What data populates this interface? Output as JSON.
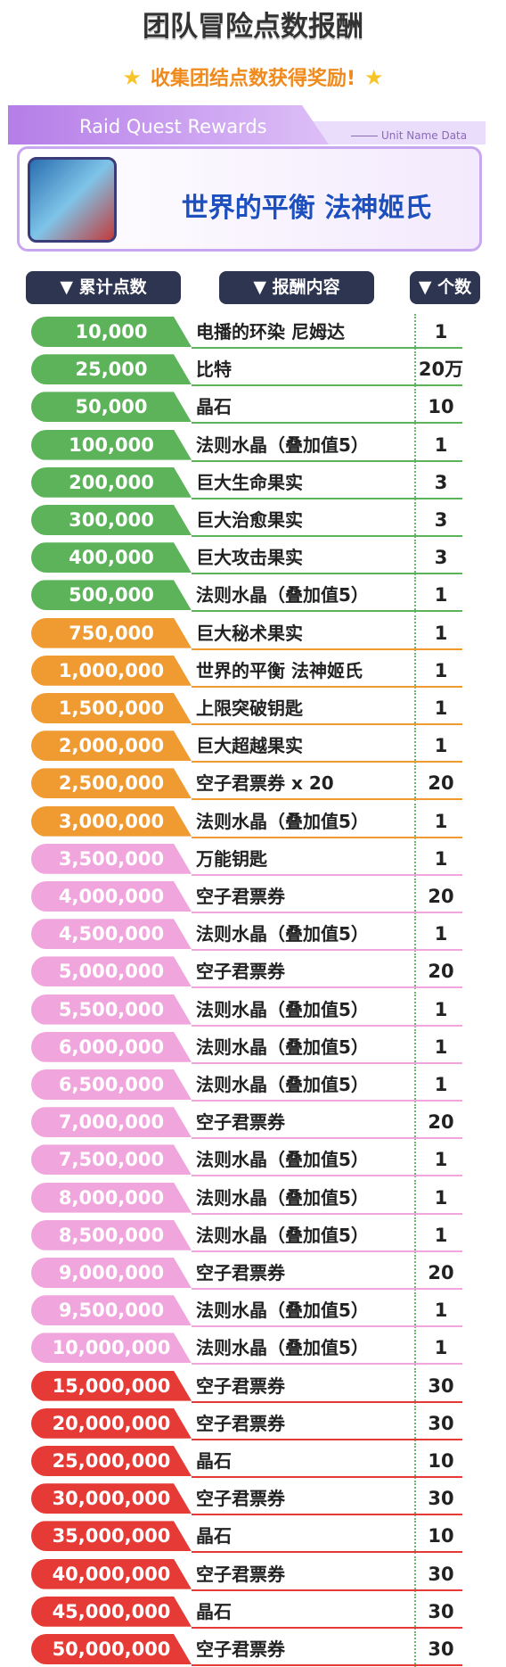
{
  "header": {
    "title": "团队冒险点数报酬",
    "subtitle": "收集团结点数获得奖励!"
  },
  "banner": {
    "label": "Raid Quest Rewards",
    "tag": "Unit Name Data",
    "unit_name": "世界的平衡 法神姬氏"
  },
  "table": {
    "columns": [
      "累计点数",
      "报酬内容",
      "个数"
    ],
    "rows": [
      [
        "10,000",
        "电播的环染 尼姆达",
        "1",
        "#5cb35a"
      ],
      [
        "25,000",
        "比特",
        "20万",
        "#5cb35a"
      ],
      [
        "50,000",
        "晶石",
        "10",
        "#5cb35a"
      ],
      [
        "100,000",
        "法则水晶（叠加值5）",
        "1",
        "#5cb35a"
      ],
      [
        "200,000",
        "巨大生命果实",
        "3",
        "#5cb35a"
      ],
      [
        "300,000",
        "巨大治愈果实",
        "3",
        "#5cb35a"
      ],
      [
        "400,000",
        "巨大攻击果实",
        "3",
        "#5cb35a"
      ],
      [
        "500,000",
        "法则水晶（叠加值5）",
        "1",
        "#5cb35a"
      ],
      [
        "750,000",
        "巨大秘术果实",
        "1",
        "#f09a32"
      ],
      [
        "1,000,000",
        "世界的平衡 法神姬氏",
        "1",
        "#f09a32"
      ],
      [
        "1,500,000",
        "上限突破钥匙",
        "1",
        "#f09a32"
      ],
      [
        "2,000,000",
        "巨大超越果实",
        "1",
        "#f09a32"
      ],
      [
        "2,500,000",
        "空子君票券 x 20",
        "20",
        "#f09a32"
      ],
      [
        "3,000,000",
        "法则水晶（叠加值5）",
        "1",
        "#f09a32"
      ],
      [
        "3,500,000",
        "万能钥匙",
        "1",
        "#f0a6dc"
      ],
      [
        "4,000,000",
        "空子君票券",
        "20",
        "#f0a6dc"
      ],
      [
        "4,500,000",
        "法则水晶（叠加值5）",
        "1",
        "#f0a6dc"
      ],
      [
        "5,000,000",
        "空子君票券",
        "20",
        "#f0a6dc"
      ],
      [
        "5,500,000",
        "法则水晶（叠加值5）",
        "1",
        "#f0a6dc"
      ],
      [
        "6,000,000",
        "法则水晶（叠加值5）",
        "1",
        "#f0a6dc"
      ],
      [
        "6,500,000",
        "法则水晶（叠加值5）",
        "1",
        "#f0a6dc"
      ],
      [
        "7,000,000",
        "空子君票券",
        "20",
        "#f0a6dc"
      ],
      [
        "7,500,000",
        "法则水晶（叠加值5）",
        "1",
        "#f0a6dc"
      ],
      [
        "8,000,000",
        "法则水晶（叠加值5）",
        "1",
        "#f0a6dc"
      ],
      [
        "8,500,000",
        "法则水晶（叠加值5）",
        "1",
        "#f0a6dc"
      ],
      [
        "9,000,000",
        "空子君票券",
        "20",
        "#f0a6dc"
      ],
      [
        "9,500,000",
        "法则水晶（叠加值5）",
        "1",
        "#f0a6dc"
      ],
      [
        "10,000,000",
        "法则水晶（叠加值5）",
        "1",
        "#f0a6dc"
      ],
      [
        "15,000,000",
        "空子君票券",
        "30",
        "#e53a35"
      ],
      [
        "20,000,000",
        "空子君票券",
        "30",
        "#e53a35"
      ],
      [
        "25,000,000",
        "晶石",
        "10",
        "#e53a35"
      ],
      [
        "30,000,000",
        "空子君票券",
        "30",
        "#e53a35"
      ],
      [
        "35,000,000",
        "晶石",
        "10",
        "#e53a35"
      ],
      [
        "40,000,000",
        "空子君票券",
        "30",
        "#e53a35"
      ],
      [
        "45,000,000",
        "晶石",
        "30",
        "#e53a35"
      ],
      [
        "50,000,000",
        "空子君票券",
        "30",
        "#e53a35"
      ]
    ]
  }
}
